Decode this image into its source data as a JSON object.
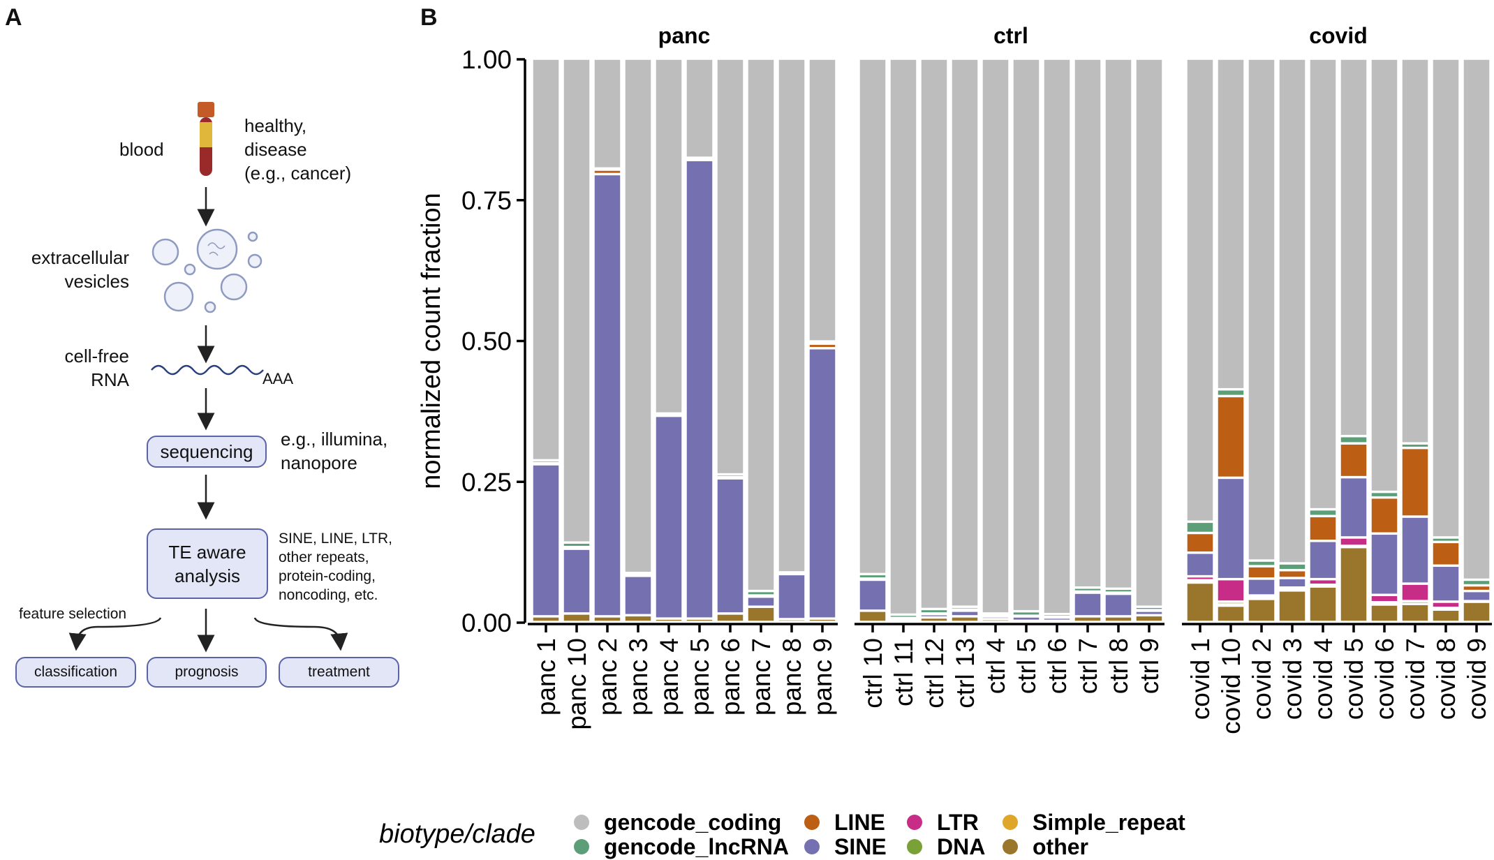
{
  "panel_a": {
    "letter": "A",
    "blood": "blood",
    "blood_note": [
      "healthy,",
      "disease",
      "(e.g., cancer)"
    ],
    "ev": [
      "extracellular",
      "vesicles"
    ],
    "cfrna": [
      "cell-free",
      "RNA"
    ],
    "polya": "AAA",
    "sequencing": "sequencing",
    "seq_note": [
      "e.g., illumina,",
      "nanopore"
    ],
    "analysis": [
      "TE aware",
      "analysis"
    ],
    "analysis_note": [
      "SINE, LINE, LTR,",
      "other repeats,",
      "protein-coding,",
      "noncoding, etc."
    ],
    "feature_selection": "feature selection",
    "outcomes": [
      "classification",
      "prognosis",
      "treatment"
    ]
  },
  "panel_b": {
    "letter": "B"
  },
  "chart_data": {
    "type": "bar",
    "stacked": true,
    "ylabel": "normalized count fraction",
    "ylim": [
      0,
      1
    ],
    "yticks": [
      "0.00",
      "0.25",
      "0.50",
      "0.75",
      "1.00"
    ],
    "legend": {
      "title": "biotype/clade",
      "placement": "bottom",
      "entries": [
        {
          "name": "gencode_coding",
          "color": "#bdbdbd"
        },
        {
          "name": "gencode_lncRNA",
          "color": "#5b9e78"
        },
        {
          "name": "LINE",
          "color": "#bd5e15"
        },
        {
          "name": "SINE",
          "color": "#7570b0"
        },
        {
          "name": "LTR",
          "color": "#c72c86"
        },
        {
          "name": "DNA",
          "color": "#7aa136"
        },
        {
          "name": "Simple_repeat",
          "color": "#dfa72a"
        },
        {
          "name": "other",
          "color": "#99762c"
        }
      ]
    },
    "stack_order_bottom_to_top": [
      "other",
      "Simple_repeat",
      "DNA",
      "LTR",
      "SINE",
      "LINE",
      "gencode_lncRNA",
      "gencode_coding"
    ],
    "facets": [
      {
        "title": "panc",
        "samples": [
          {
            "label": "panc 1",
            "other": 0.01,
            "Simple_repeat": 0,
            "DNA": 0,
            "LTR": 0,
            "SINE": 0.27,
            "LINE": 0.002,
            "gencode_lncRNA": 0.005
          },
          {
            "label": "panc 10",
            "other": 0.015,
            "Simple_repeat": 0,
            "DNA": 0,
            "LTR": 0,
            "SINE": 0.115,
            "LINE": 0.003,
            "gencode_lncRNA": 0.008
          },
          {
            "label": "panc 2",
            "other": 0.01,
            "Simple_repeat": 0,
            "DNA": 0,
            "LTR": 0,
            "SINE": 0.785,
            "LINE": 0.008,
            "gencode_lncRNA": 0.002
          },
          {
            "label": "panc 3",
            "other": 0.012,
            "Simple_repeat": 0,
            "DNA": 0,
            "LTR": 0,
            "SINE": 0.07,
            "LINE": 0.001,
            "gencode_lncRNA": 0.004
          },
          {
            "label": "panc 4",
            "other": 0.006,
            "Simple_repeat": 0,
            "DNA": 0,
            "LTR": 0,
            "SINE": 0.36,
            "LINE": 0.002,
            "gencode_lncRNA": 0.002
          },
          {
            "label": "panc 5",
            "other": 0.006,
            "Simple_repeat": 0,
            "DNA": 0,
            "LTR": 0,
            "SINE": 0.814,
            "LINE": 0.003,
            "gencode_lncRNA": 0.001
          },
          {
            "label": "panc 6",
            "other": 0.015,
            "Simple_repeat": 0,
            "DNA": 0,
            "LTR": 0,
            "SINE": 0.24,
            "LINE": 0.002,
            "gencode_lncRNA": 0.005
          },
          {
            "label": "panc 7",
            "other": 0.027,
            "Simple_repeat": 0,
            "DNA": 0,
            "LTR": 0,
            "SINE": 0.018,
            "LINE": 0.002,
            "gencode_lncRNA": 0.008
          },
          {
            "label": "panc 8",
            "other": 0.005,
            "Simple_repeat": 0,
            "DNA": 0,
            "LTR": 0,
            "SINE": 0.08,
            "LINE": 0.002,
            "gencode_lncRNA": 0.001
          },
          {
            "label": "panc 9",
            "other": 0.006,
            "Simple_repeat": 0,
            "DNA": 0,
            "LTR": 0,
            "SINE": 0.48,
            "LINE": 0.008,
            "gencode_lncRNA": 0.004
          }
        ]
      },
      {
        "title": "ctrl",
        "samples": [
          {
            "label": "ctrl 10",
            "other": 0.02,
            "Simple_repeat": 0,
            "DNA": 0,
            "LTR": 0,
            "SINE": 0.055,
            "LINE": 0.002,
            "gencode_lncRNA": 0.008
          },
          {
            "label": "ctrl 11",
            "other": 0.003,
            "Simple_repeat": 0,
            "DNA": 0,
            "LTR": 0,
            "SINE": 0.004,
            "LINE": 0,
            "gencode_lncRNA": 0.006
          },
          {
            "label": "ctrl 12",
            "other": 0.008,
            "Simple_repeat": 0,
            "DNA": 0,
            "LTR": 0,
            "SINE": 0.006,
            "LINE": 0.001,
            "gencode_lncRNA": 0.008
          },
          {
            "label": "ctrl 13",
            "other": 0.01,
            "Simple_repeat": 0,
            "DNA": 0,
            "LTR": 0,
            "SINE": 0.01,
            "LINE": 0.002,
            "gencode_lncRNA": 0.005
          },
          {
            "label": "ctrl 4",
            "other": 0.005,
            "Simple_repeat": 0,
            "DNA": 0,
            "LTR": 0,
            "SINE": 0.005,
            "LINE": 0.001,
            "gencode_lncRNA": 0.004
          },
          {
            "label": "ctrl 5",
            "other": 0.002,
            "Simple_repeat": 0,
            "DNA": 0,
            "LTR": 0,
            "SINE": 0.008,
            "LINE": 0.001,
            "gencode_lncRNA": 0.008
          },
          {
            "label": "ctrl 6",
            "other": 0.002,
            "Simple_repeat": 0,
            "DNA": 0,
            "LTR": 0,
            "SINE": 0.006,
            "LINE": 0.001,
            "gencode_lncRNA": 0.005
          },
          {
            "label": "ctrl 7",
            "other": 0.01,
            "Simple_repeat": 0,
            "DNA": 0,
            "LTR": 0,
            "SINE": 0.042,
            "LINE": 0.002,
            "gencode_lncRNA": 0.007
          },
          {
            "label": "ctrl 8",
            "other": 0.01,
            "Simple_repeat": 0,
            "DNA": 0,
            "LTR": 0,
            "SINE": 0.04,
            "LINE": 0.002,
            "gencode_lncRNA": 0.007
          },
          {
            "label": "ctrl 9",
            "other": 0.012,
            "Simple_repeat": 0,
            "DNA": 0,
            "LTR": 0,
            "SINE": 0.008,
            "LINE": 0.001,
            "gencode_lncRNA": 0.006
          }
        ]
      },
      {
        "title": "covid",
        "samples": [
          {
            "label": "covid 1",
            "other": 0.07,
            "Simple_repeat": 0.004,
            "DNA": 0,
            "LTR": 0.007,
            "SINE": 0.042,
            "LINE": 0.035,
            "gencode_lncRNA": 0.02
          },
          {
            "label": "covid 10",
            "other": 0.029,
            "Simple_repeat": 0.002,
            "DNA": 0.005,
            "LTR": 0.04,
            "SINE": 0.18,
            "LINE": 0.145,
            "gencode_lncRNA": 0.012
          },
          {
            "label": "covid 2",
            "other": 0.041,
            "Simple_repeat": 0.002,
            "DNA": 0,
            "LTR": 0.004,
            "SINE": 0.03,
            "LINE": 0.022,
            "gencode_lncRNA": 0.01
          },
          {
            "label": "covid 3",
            "other": 0.056,
            "Simple_repeat": 0.002,
            "DNA": 0,
            "LTR": 0.003,
            "SINE": 0.017,
            "LINE": 0.014,
            "gencode_lncRNA": 0.012
          },
          {
            "label": "covid 4",
            "other": 0.063,
            "Simple_repeat": 0.003,
            "DNA": 0,
            "LTR": 0.01,
            "SINE": 0.068,
            "LINE": 0.044,
            "gencode_lncRNA": 0.012
          },
          {
            "label": "covid 5",
            "other": 0.133,
            "Simple_repeat": 0.002,
            "DNA": 0,
            "LTR": 0.015,
            "SINE": 0.107,
            "LINE": 0.06,
            "gencode_lncRNA": 0.013
          },
          {
            "label": "covid 6",
            "other": 0.031,
            "Simple_repeat": 0.002,
            "DNA": 0.002,
            "LTR": 0.013,
            "SINE": 0.109,
            "LINE": 0.064,
            "gencode_lncRNA": 0.01
          },
          {
            "label": "covid 7",
            "other": 0.032,
            "Simple_repeat": 0,
            "DNA": 0.005,
            "LTR": 0.031,
            "SINE": 0.119,
            "LINE": 0.122,
            "gencode_lncRNA": 0.008
          },
          {
            "label": "covid 8",
            "other": 0.022,
            "Simple_repeat": 0.003,
            "DNA": 0,
            "LTR": 0.011,
            "SINE": 0.064,
            "LINE": 0.042,
            "gencode_lncRNA": 0.008
          },
          {
            "label": "covid 9",
            "other": 0.036,
            "Simple_repeat": 0,
            "DNA": 0,
            "LTR": 0.001,
            "SINE": 0.018,
            "LINE": 0.01,
            "gencode_lncRNA": 0.01
          }
        ]
      }
    ]
  }
}
